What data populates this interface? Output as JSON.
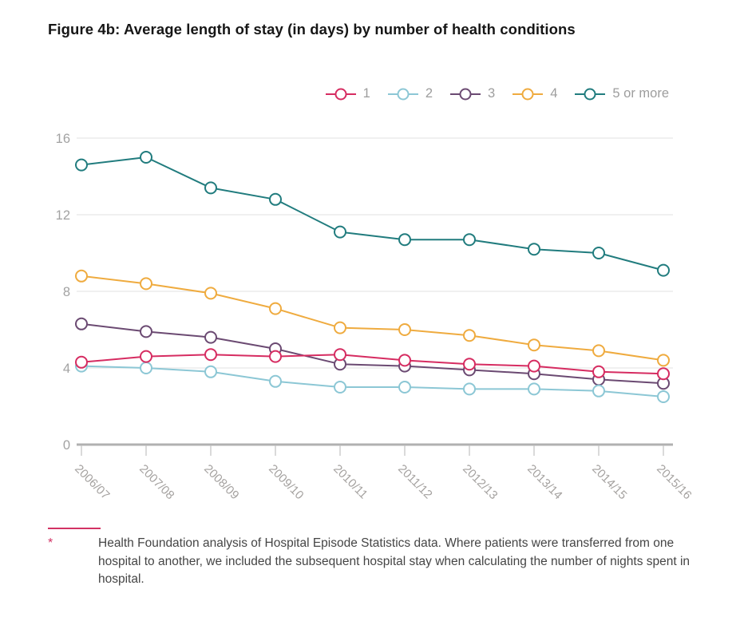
{
  "title": "Figure 4b: Average length of stay (in days) by number of health conditions",
  "accent_color": "#d23264",
  "chart_data": {
    "type": "line",
    "title": "Figure 4b: Average length of stay (in days) by number of health conditions",
    "categories": [
      "2006/07",
      "2007/08",
      "2008/09",
      "2009/10",
      "2010/11",
      "2011/12",
      "2012/13",
      "2013/14",
      "2014/15",
      "2015/16"
    ],
    "series": [
      {
        "name": "1",
        "color": "#d62c61",
        "values": [
          4.3,
          4.6,
          4.7,
          4.6,
          4.7,
          4.4,
          4.2,
          4.1,
          3.8,
          3.7
        ]
      },
      {
        "name": "2",
        "color": "#8cc7d5",
        "values": [
          4.1,
          4.0,
          3.8,
          3.3,
          3.0,
          3.0,
          2.9,
          2.9,
          2.8,
          2.5
        ]
      },
      {
        "name": "3",
        "color": "#6b4a72",
        "values": [
          6.3,
          5.9,
          5.6,
          5.0,
          4.2,
          4.1,
          3.9,
          3.7,
          3.4,
          3.2
        ]
      },
      {
        "name": "4",
        "color": "#efab3f",
        "values": [
          8.8,
          8.4,
          7.9,
          7.1,
          6.1,
          6.0,
          5.7,
          5.2,
          4.9,
          4.4
        ]
      },
      {
        "name": "5 or more",
        "color": "#217c7e",
        "values": [
          14.6,
          15.0,
          13.4,
          12.8,
          11.1,
          10.7,
          10.7,
          10.2,
          10.0,
          9.1
        ]
      }
    ],
    "xlabel": "",
    "ylabel": "",
    "ylim": [
      0,
      16
    ],
    "yticks": [
      0,
      4,
      8,
      12,
      16
    ],
    "grid": true,
    "legend_position": "top-right",
    "grid_color": "#e8e8e8",
    "axis_color": "#b1b1b1",
    "tick_color": "#c6c6c6"
  },
  "footnote": {
    "marker": "*",
    "text": "Health Foundation analysis of Hospital Episode Statistics data. Where patients were transferred from one hospital to another, we included the subsequent hospital stay when calculating the number of nights spent in hospital."
  }
}
